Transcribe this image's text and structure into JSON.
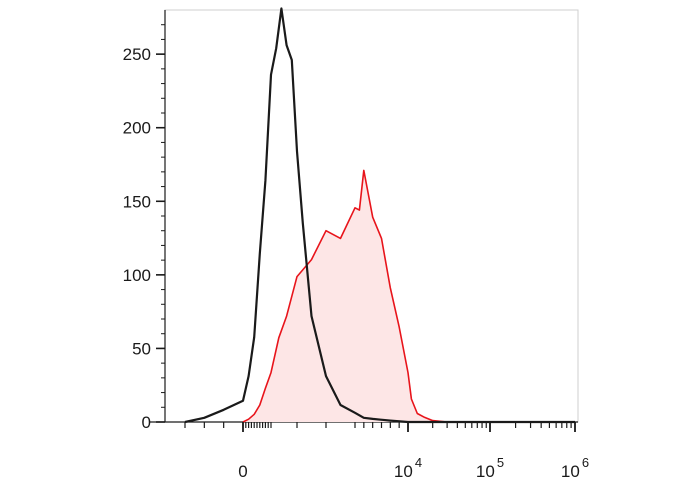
{
  "chart_data": {
    "type": "area",
    "title": "",
    "xlabel": "",
    "ylabel": "",
    "x_scale": "biexponential",
    "ylim": [
      0,
      280
    ],
    "grid": false,
    "y_ticks": [
      {
        "value": 0,
        "label": "0"
      },
      {
        "value": 50,
        "label": "50"
      },
      {
        "value": 100,
        "label": "100"
      },
      {
        "value": 150,
        "label": "150"
      },
      {
        "value": 200,
        "label": "200"
      },
      {
        "value": 250,
        "label": "250"
      }
    ],
    "x_ticks": [
      {
        "value": 0,
        "base": "0",
        "exp": ""
      },
      {
        "value": 10000,
        "base": "10",
        "exp": "4"
      },
      {
        "value": 100000,
        "base": "10",
        "exp": "5"
      },
      {
        "value": 1000000,
        "base": "10",
        "exp": "6"
      }
    ],
    "series": [
      {
        "color": "#1a1a1a",
        "fill": "none",
        "x": [
          -300,
          -200,
          -100,
          0,
          200,
          400,
          600,
          800,
          1000,
          1200,
          1400,
          1600,
          1800,
          2000,
          2200,
          2500,
          3000,
          3500,
          4000,
          5000,
          6000,
          8000,
          10000,
          20000,
          50000,
          100000,
          1000000
        ],
        "y": [
          0,
          3,
          8,
          15,
          30,
          60,
          110,
          170,
          230,
          260,
          275,
          262,
          240,
          190,
          130,
          75,
          30,
          12,
          6,
          3,
          2,
          1,
          0,
          0,
          0,
          0,
          0
        ]
      },
      {
        "color": "#e8141b",
        "fill": "#fde6e6",
        "x": [
          0,
          200,
          400,
          600,
          800,
          1000,
          1300,
          1600,
          2000,
          2500,
          3000,
          3500,
          4000,
          4500,
          5000,
          6000,
          7000,
          8000,
          9000,
          10000,
          11000,
          13000,
          16000,
          20000,
          30000,
          50000,
          100000,
          1000000
        ],
        "y": [
          0,
          2,
          5,
          12,
          22,
          35,
          55,
          75,
          95,
          115,
          125,
          130,
          140,
          150,
          165,
          145,
          120,
          95,
          62,
          35,
          15,
          6,
          3,
          1,
          0,
          0,
          0,
          0
        ]
      }
    ]
  }
}
